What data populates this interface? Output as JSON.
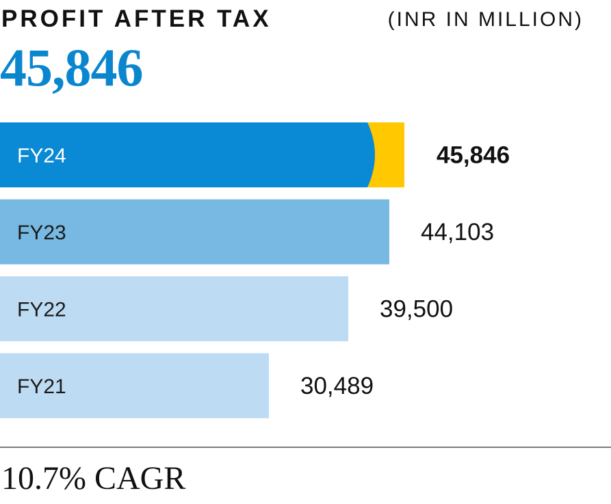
{
  "header": {
    "title": "PROFIT AFTER TAX",
    "unit": "(INR IN MILLION)",
    "headline_value": "45,846"
  },
  "footer": {
    "cagr": "10.7% CAGR"
  },
  "colors": {
    "highlight_bar": "#0a8ad4",
    "highlight_accent": "#ffc800",
    "bar_fy23": "#77b9e3",
    "bar_light": "#bddbf2",
    "headline": "#0a86cf"
  },
  "chart_data": {
    "type": "bar",
    "orientation": "horizontal",
    "categories": [
      "FY24",
      "FY23",
      "FY22",
      "FY21"
    ],
    "values": [
      45846,
      44103,
      39500,
      30489
    ],
    "value_labels": [
      "45,846",
      "44,103",
      "39,500",
      "30,489"
    ],
    "highlight": "FY24",
    "title": "PROFIT AFTER TAX",
    "unit": "(INR IN MILLION)",
    "xlabel": "",
    "ylabel": "",
    "grid": false,
    "legend": "none"
  }
}
